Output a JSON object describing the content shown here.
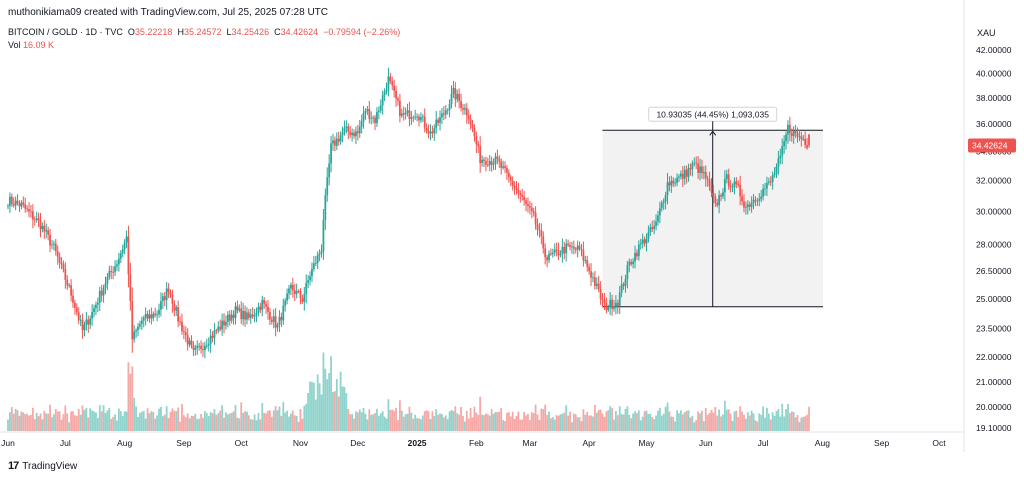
{
  "header": {
    "created_by": "muthonikiama09 created with TradingView.com, Jul 25, 2025 07:28 UTC"
  },
  "legend": {
    "symbol": "BITCOIN / GOLD · 1D · TVC",
    "open_label": "O",
    "open": "35.22218",
    "high_label": "H",
    "high": "35.24572",
    "low_label": "L",
    "low": "34.25426",
    "close_label": "C",
    "close": "34.42624",
    "change": "−0.79594 (−2.26%)",
    "vol_label": "Vol",
    "vol": "16.09 K"
  },
  "currency": "XAU",
  "last_price_tag": "34.42624",
  "measure_label": "10.93035 (44.45%) 1,093,035",
  "footer": {
    "brand": "TradingView",
    "logo": "17"
  },
  "colors": {
    "up": "#26a69a",
    "down": "#ef5350",
    "up_vol": "#8fd3cc",
    "down_vol": "#f5a9a7",
    "last_tag": "#ef5350",
    "range_fill": "#f0f0f0"
  },
  "chart_data": {
    "type": "candlestick",
    "interval": "1D",
    "scale": "log",
    "y_ticks": [
      42.0,
      40.0,
      38.0,
      36.0,
      34.0,
      32.0,
      30.0,
      28.0,
      26.5,
      25.0,
      23.5,
      22.0,
      21.0,
      20.0,
      19.1
    ],
    "y_tick_labels": [
      "42.00000",
      "40.00000",
      "38.00000",
      "36.00000",
      "34.00000",
      "32.00000",
      "30.00000",
      "28.00000",
      "26.50000",
      "25.00000",
      "23.50000",
      "22.00000",
      "21.00000",
      "20.00000",
      "19.10000"
    ],
    "x_ticks": [
      "Jun",
      "Jul",
      "Aug",
      "Sep",
      "Oct",
      "Nov",
      "Dec",
      "2025",
      "Feb",
      "Mar",
      "Apr",
      "May",
      "Jun",
      "Jul",
      "Aug",
      "Sep",
      "Oct"
    ],
    "x_tick_dates": [
      "2024-06-01",
      "2024-07-01",
      "2024-08-01",
      "2024-09-01",
      "2024-10-01",
      "2024-11-01",
      "2024-12-01",
      "2025-01-01",
      "2025-02-01",
      "2025-03-01",
      "2025-04-01",
      "2025-05-01",
      "2025-06-01",
      "2025-07-01",
      "2025-08-01",
      "2025-09-01",
      "2025-10-01"
    ],
    "x_range": [
      "2024-06-01",
      "2025-10-12"
    ],
    "price_path": [
      [
        "2024-06-01",
        30.7
      ],
      [
        "2024-06-08",
        30.4
      ],
      [
        "2024-06-18",
        29.2
      ],
      [
        "2024-06-25",
        27.8
      ],
      [
        "2024-07-05",
        25.0
      ],
      [
        "2024-07-10",
        23.4
      ],
      [
        "2024-07-15",
        24.3
      ],
      [
        "2024-07-22",
        25.9
      ],
      [
        "2024-07-28",
        27.0
      ],
      [
        "2024-08-02",
        28.4
      ],
      [
        "2024-08-05",
        23.0
      ],
      [
        "2024-08-10",
        23.9
      ],
      [
        "2024-08-18",
        24.3
      ],
      [
        "2024-08-24",
        25.6
      ],
      [
        "2024-08-29",
        24.0
      ],
      [
        "2024-09-06",
        22.3
      ],
      [
        "2024-09-12",
        22.8
      ],
      [
        "2024-09-20",
        23.6
      ],
      [
        "2024-09-28",
        24.4
      ],
      [
        "2024-10-05",
        24.0
      ],
      [
        "2024-10-12",
        24.8
      ],
      [
        "2024-10-20",
        23.6
      ],
      [
        "2024-10-27",
        25.6
      ],
      [
        "2024-11-02",
        25.0
      ],
      [
        "2024-11-06",
        26.3
      ],
      [
        "2024-11-12",
        27.8
      ],
      [
        "2024-11-13",
        29.6
      ],
      [
        "2024-11-17",
        34.3
      ],
      [
        "2024-11-24",
        35.5
      ],
      [
        "2024-12-01",
        35.3
      ],
      [
        "2024-12-05",
        37.1
      ],
      [
        "2024-12-10",
        36.3
      ],
      [
        "2024-12-17",
        39.5
      ],
      [
        "2024-12-24",
        36.6
      ],
      [
        "2025-01-01",
        36.9
      ],
      [
        "2025-01-08",
        35.3
      ],
      [
        "2025-01-15",
        36.8
      ],
      [
        "2025-01-20",
        38.4
      ],
      [
        "2025-01-28",
        36.7
      ],
      [
        "2025-02-03",
        33.5
      ],
      [
        "2025-02-12",
        33.3
      ],
      [
        "2025-02-24",
        31.0
      ],
      [
        "2025-03-03",
        29.6
      ],
      [
        "2025-03-10",
        27.2
      ],
      [
        "2025-03-20",
        27.8
      ],
      [
        "2025-03-27",
        27.7
      ],
      [
        "2025-04-03",
        26.1
      ],
      [
        "2025-04-09",
        24.6
      ],
      [
        "2025-04-16",
        24.9
      ],
      [
        "2025-04-22",
        26.9
      ],
      [
        "2025-04-28",
        28.0
      ],
      [
        "2025-05-06",
        29.2
      ],
      [
        "2025-05-12",
        31.8
      ],
      [
        "2025-05-20",
        32.3
      ],
      [
        "2025-05-26",
        33.1
      ],
      [
        "2025-06-01",
        32.2
      ],
      [
        "2025-06-06",
        30.3
      ],
      [
        "2025-06-12",
        32.1
      ],
      [
        "2025-06-18",
        31.4
      ],
      [
        "2025-06-22",
        30.3
      ],
      [
        "2025-06-29",
        31.1
      ],
      [
        "2025-07-05",
        31.9
      ],
      [
        "2025-07-10",
        33.5
      ],
      [
        "2025-07-14",
        35.7
      ],
      [
        "2025-07-18",
        35.2
      ],
      [
        "2025-07-22",
        34.9
      ],
      [
        "2025-07-25",
        34.43
      ]
    ],
    "last_candle": {
      "date": "2025-07-25",
      "open": 35.22218,
      "high": 35.24572,
      "low": 34.25426,
      "close": 34.42624
    },
    "measure_range": {
      "from_date": "2025-04-09",
      "to_date": "2025-07-25",
      "low": 24.6,
      "high": 35.53
    }
  }
}
